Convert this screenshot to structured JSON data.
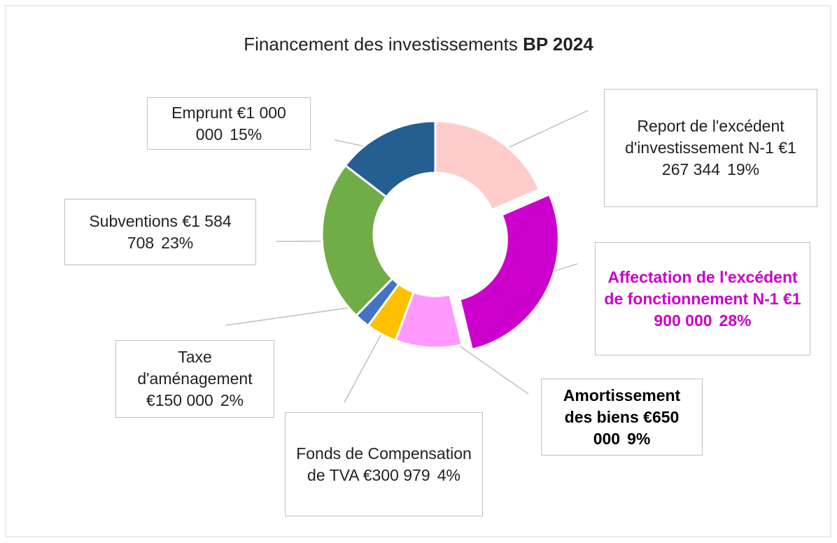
{
  "chart_data": {
    "type": "donut",
    "title": [
      "Financement des investissements",
      "BP 2024"
    ],
    "categories": [
      "Report de l'excédent d'investissement N-1",
      "Affectation de l'excédent de fonctionnement N-1",
      "Amortissement des biens",
      "Fonds de Compensation de TVA",
      "Taxe d'aménagement",
      "Subventions",
      "Emprunt"
    ],
    "values": [
      1267344,
      1900000,
      650000,
      300979,
      150000,
      1584708,
      1000000
    ],
    "value_labels": [
      "€1 267 344",
      "€1 900 000",
      "€650 000",
      "€300 979",
      "€150 000",
      "€1 584 708",
      "€1 000 000"
    ],
    "percents": [
      19,
      28,
      9,
      4,
      2,
      23,
      15
    ],
    "percent_labels": [
      "19%",
      "28%",
      "9%",
      "4%",
      "2%",
      "23%",
      "15%"
    ],
    "colors": [
      "#ffcccc",
      "#cc00cc",
      "#ff99ff",
      "#ffc000",
      "#4472c4",
      "#70ad47",
      "#255e91"
    ]
  }
}
